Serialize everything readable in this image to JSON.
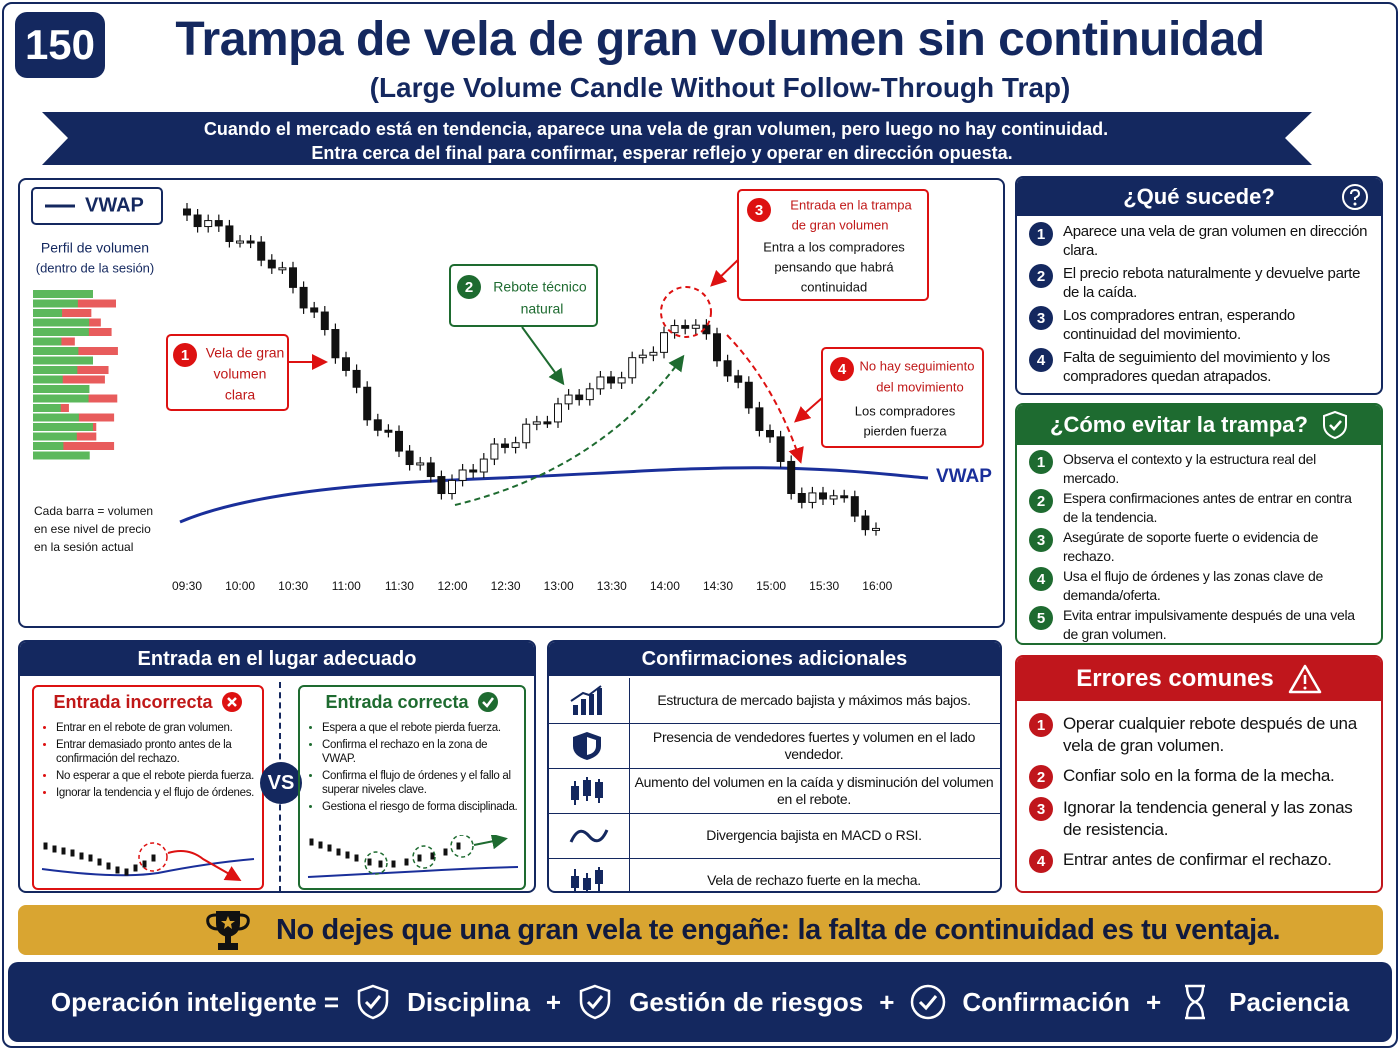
{
  "header": {
    "number": "150",
    "title": "Trampa de vela de gran volumen sin continuidad",
    "subtitle": "(Large Volume Candle Without Follow-Through Trap)",
    "banner": [
      "Cuando el mercado está en tendencia, aparece una vela de gran volumen, pero luego no hay continuidad.",
      "Entra cerca del final para confirmar, esperar reflejo y operar en dirección opuesta."
    ]
  },
  "chart": {
    "legend": "VWAP",
    "profile_title": "Perfil de volumen",
    "profile_subtitle": "(dentro de la sesión)",
    "profile_note": [
      "Cada barra = volumen",
      "en ese nivel de precio",
      "en la sesión actual"
    ],
    "vwap_label": "VWAP",
    "times": [
      "09:30",
      "10:00",
      "10:30",
      "11:00",
      "11:30",
      "12:00",
      "12:30",
      "13:00",
      "13:30",
      "14:00",
      "14:30",
      "15:00",
      "15:30",
      "16:00"
    ],
    "callouts": [
      {
        "number": "1",
        "title": [
          "Vela de gran",
          "volumen",
          "clara"
        ]
      },
      {
        "number": "2",
        "title": [
          "Rebote técnico",
          "natural"
        ]
      },
      {
        "number": "3",
        "title": [
          "Entrada en la trampa",
          "de gran volumen"
        ],
        "body": [
          "Entra a los compradores",
          "pensando que habrá",
          "continuidad"
        ]
      },
      {
        "number": "4",
        "title": [
          "No hay seguimiento",
          "del movimiento"
        ],
        "body": [
          "Los compradores",
          "pierden fuerza"
        ]
      }
    ]
  },
  "what_happens": {
    "title": "¿Qué sucede?",
    "items": [
      {
        "number": "1",
        "text": "Aparece una vela de gran volumen en dirección clara."
      },
      {
        "number": "2",
        "text": "El precio rebota naturalmente y devuelve parte de la caída."
      },
      {
        "number": "3",
        "text": "Los compradores entran, esperando continuidad del movimiento."
      },
      {
        "number": "4",
        "text": "Falta de seguimiento del movimiento y los compradores quedan atrapados."
      }
    ]
  },
  "avoid": {
    "title": "¿Cómo evitar la trampa?",
    "items": [
      {
        "number": "1",
        "text": "Observa el contexto y la estructura real del mercado."
      },
      {
        "number": "2",
        "text": "Espera confirmaciones antes de entrar en contra de la tendencia."
      },
      {
        "number": "3",
        "text": "Asegúrate de soporte fuerte o evidencia de rechazo."
      },
      {
        "number": "4",
        "text": "Usa el flujo de órdenes y las zonas clave de demanda/oferta."
      },
      {
        "number": "5",
        "text": "Evita entrar impulsivamente después de una vela de gran volumen."
      }
    ]
  },
  "errors": {
    "title": "Errores comunes",
    "items": [
      {
        "number": "1",
        "text": "Operar cualquier rebote después de una vela de gran volumen."
      },
      {
        "number": "2",
        "text": "Confiar solo en la forma de la mecha."
      },
      {
        "number": "3",
        "text": "Ignorar la tendencia general y las zonas de resistencia."
      },
      {
        "number": "4",
        "text": "Entrar antes de confirmar el rechazo."
      }
    ]
  },
  "entry": {
    "title": "Entrada en el lugar adecuado",
    "vs": "VS",
    "incorrect": {
      "title": "Entrada incorrecta",
      "items": [
        "Entrar en el rebote de gran volumen.",
        "Entrar demasiado pronto antes de la confirmación del rechazo.",
        "No esperar a que el rebote pierda fuerza.",
        "Ignorar la tendencia y el flujo de órdenes."
      ]
    },
    "correct": {
      "title": "Entrada correcta",
      "items": [
        "Espera a que el rebote pierda fuerza.",
        "Confirma el rechazo en la zona de VWAP.",
        "Confirma el flujo de órdenes y el fallo al superar niveles clave.",
        "Gestiona el riesgo de forma disciplinada."
      ]
    }
  },
  "confirmations": {
    "title": "Confirmaciones adicionales",
    "items": [
      "Estructura de mercado bajista y máximos más bajos.",
      "Presencia de vendedores fuertes y volumen en el lado vendedor.",
      "Aumento del volumen en la caída y disminución del volumen en el rebote.",
      "Divergencia bajista en MACD o RSI.",
      "Vela de rechazo fuerte en la mecha."
    ]
  },
  "tagline": "No dejes que una gran vela te engañe: la falta de continuidad es tu ventaja.",
  "footer": {
    "lead": "Operación inteligente =",
    "items": [
      "Disciplina",
      "Gestión de riesgos",
      "Confirmación",
      "Paciencia"
    ],
    "separator": "+"
  }
}
